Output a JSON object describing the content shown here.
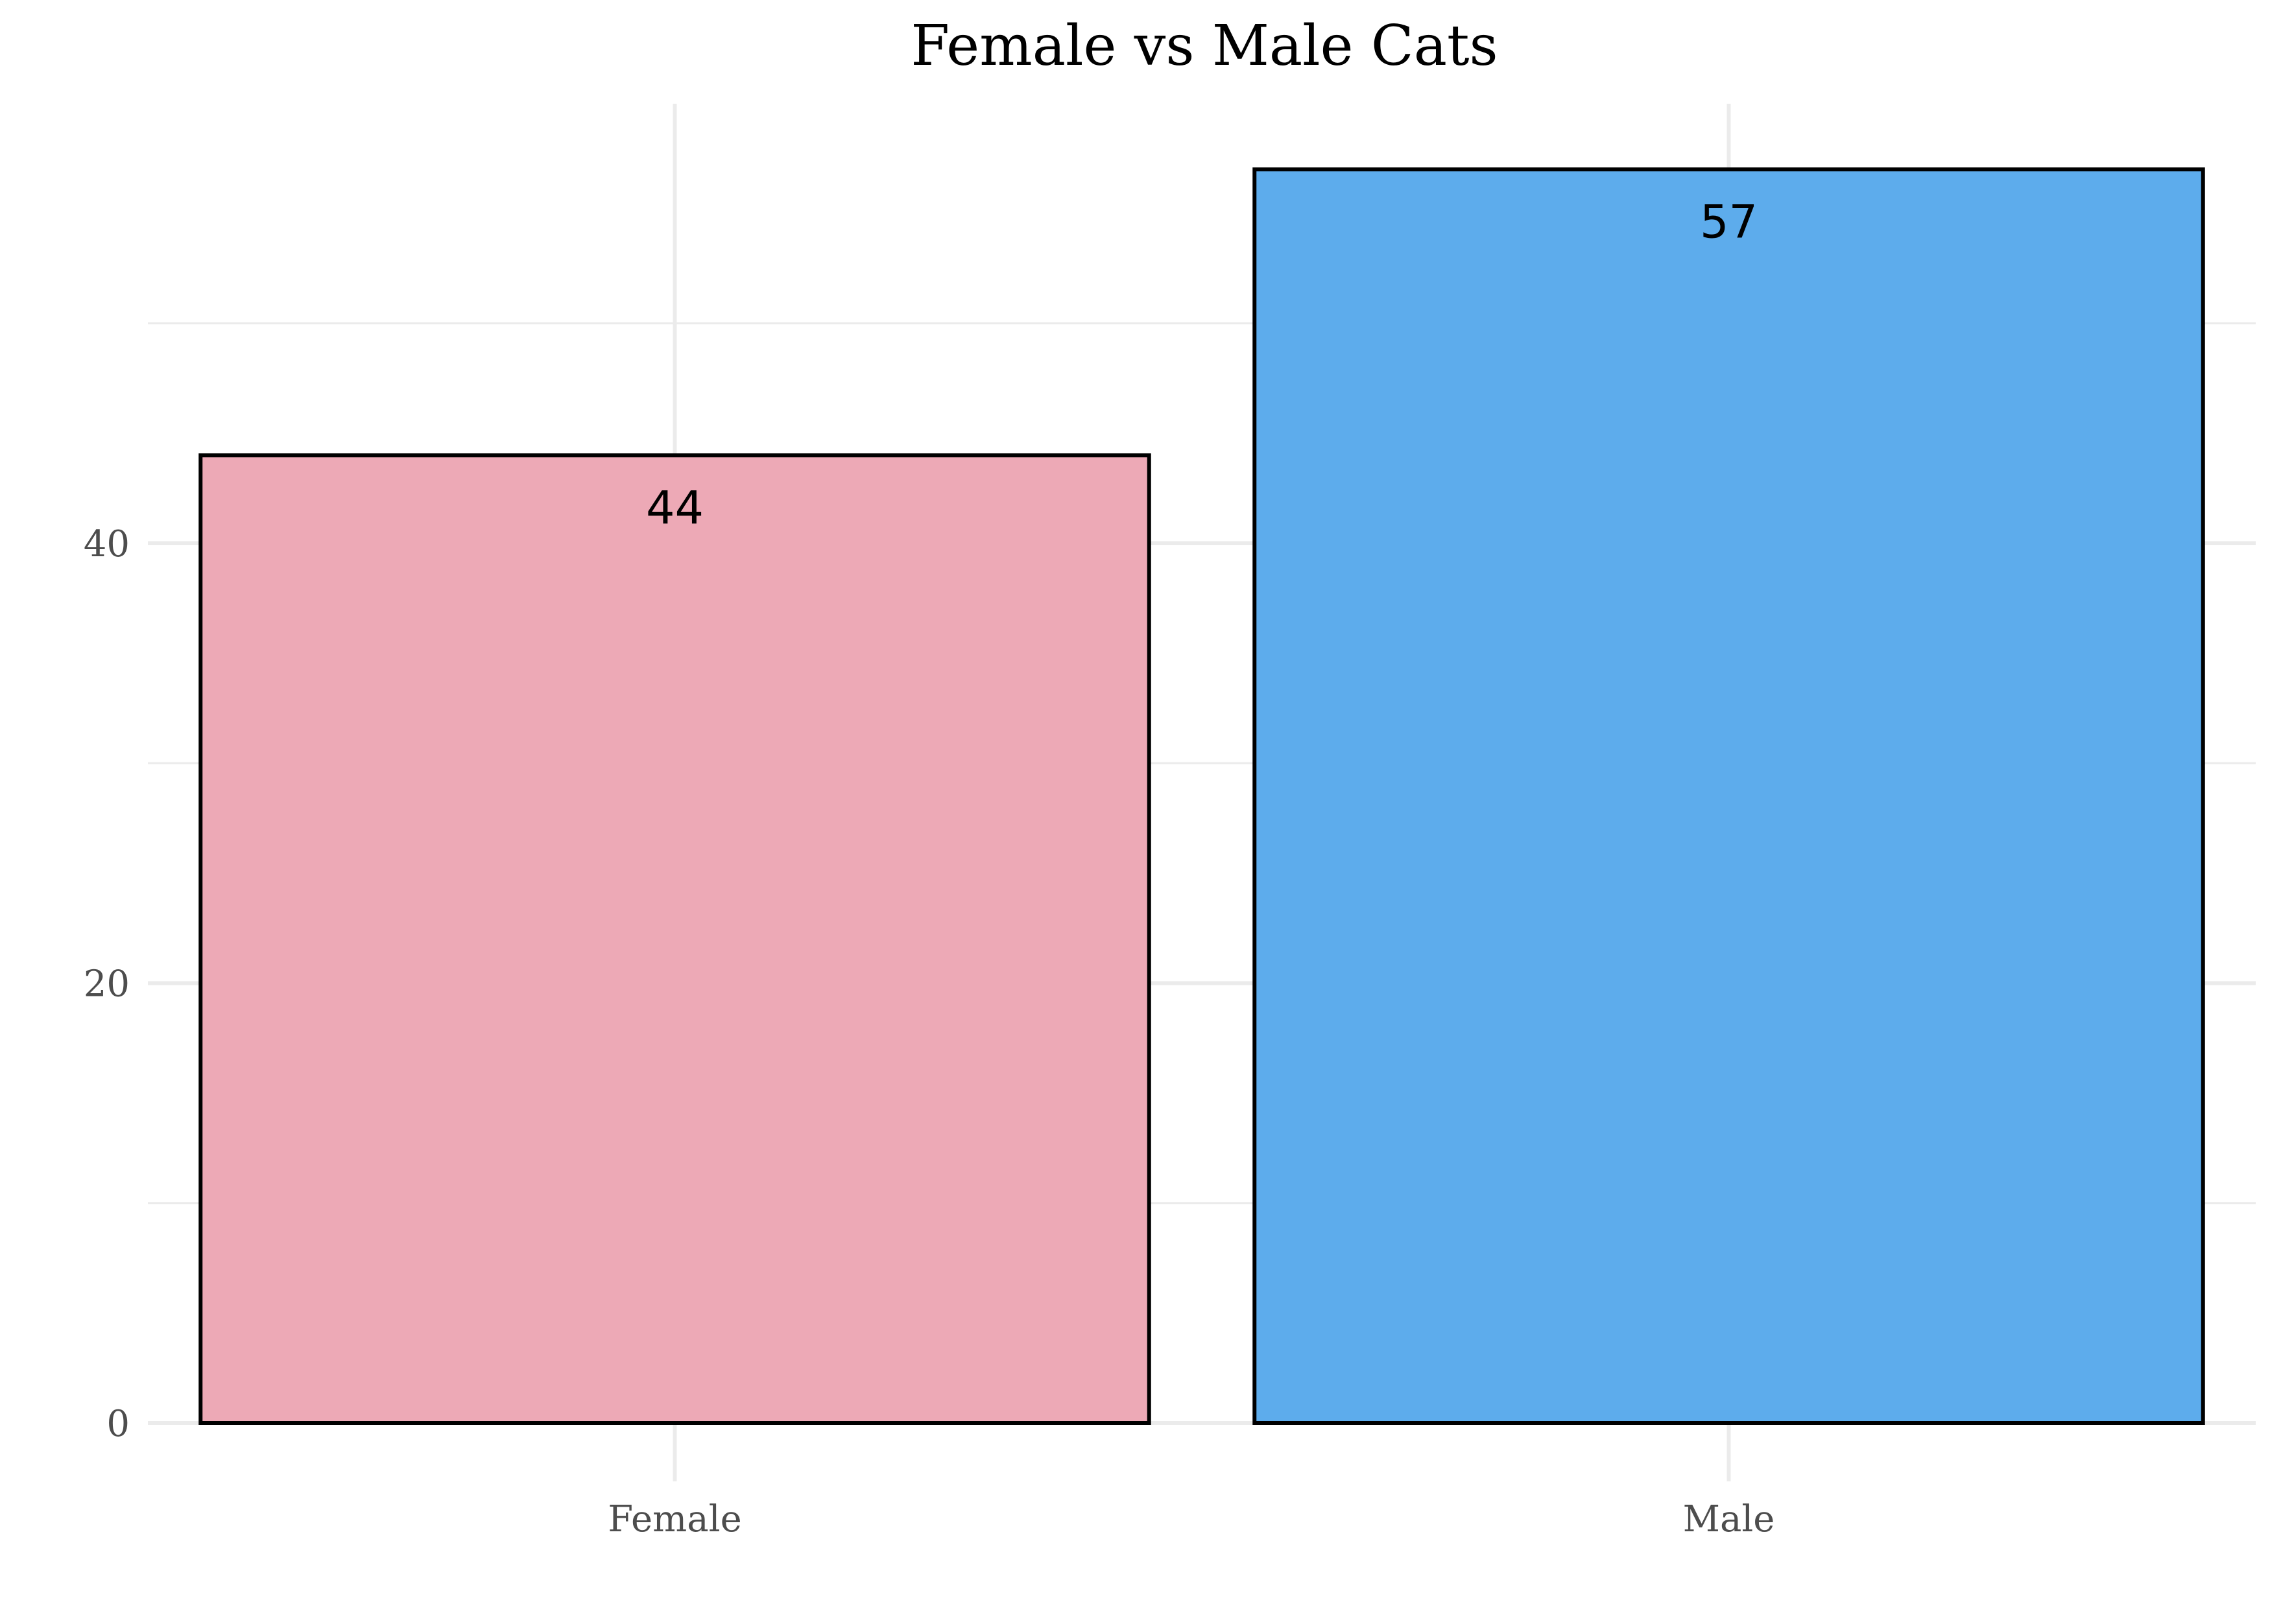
{
  "chart_data": {
    "type": "bar",
    "title": "Female vs Male Cats",
    "xlabel": "",
    "ylabel": "",
    "categories": [
      "Female",
      "Male"
    ],
    "values": [
      44,
      57
    ],
    "value_labels": [
      "44",
      "57"
    ],
    "colors": [
      "#EDA9B6",
      "#5DACEC"
    ],
    "bar_outline_color": "#000000",
    "ylim": [
      0,
      60
    ],
    "yticks": [
      0,
      20,
      40
    ],
    "ytick_labels": [
      "0",
      "20",
      "40"
    ],
    "grid": true,
    "legend": "none"
  }
}
